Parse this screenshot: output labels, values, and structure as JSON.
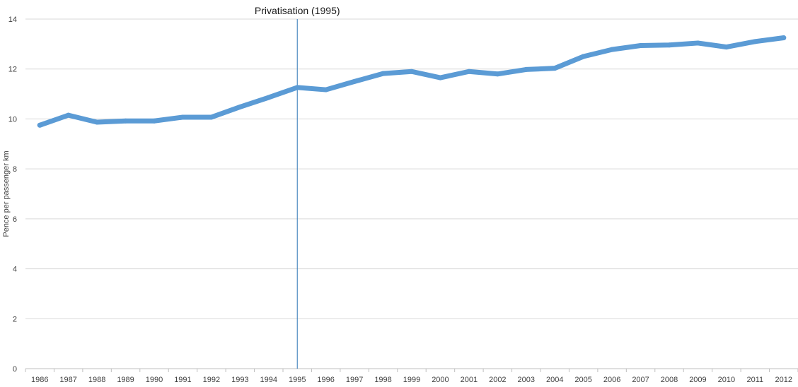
{
  "chart_data": {
    "type": "line",
    "title": "",
    "xlabel": "",
    "ylabel": "Pence per passenger km",
    "ylim": [
      0,
      14
    ],
    "yticks": [
      0,
      2,
      4,
      6,
      8,
      10,
      12,
      14
    ],
    "grid": true,
    "legend": "none",
    "categories": [
      "1986",
      "1987",
      "1988",
      "1989",
      "1990",
      "1991",
      "1992",
      "1993",
      "1994",
      "1995",
      "1996",
      "1997",
      "1998",
      "1999",
      "2000",
      "2001",
      "2002",
      "2003",
      "2004",
      "2005",
      "2006",
      "2007",
      "2008",
      "2009",
      "2010",
      "2011",
      "2012"
    ],
    "series": [
      {
        "values": [
          9.75,
          10.15,
          9.87,
          9.92,
          9.92,
          10.07,
          10.07,
          10.48,
          10.86,
          11.26,
          11.17,
          11.5,
          11.82,
          11.9,
          11.65,
          11.9,
          11.8,
          11.98,
          12.03,
          12.5,
          12.78,
          12.94,
          12.96,
          13.04,
          12.88,
          13.1,
          13.25
        ],
        "color": "#5b9bd5"
      }
    ],
    "annotations": [
      {
        "category": "1995",
        "label": "Privatisation (1995)",
        "color": "#2e75b6"
      }
    ]
  }
}
